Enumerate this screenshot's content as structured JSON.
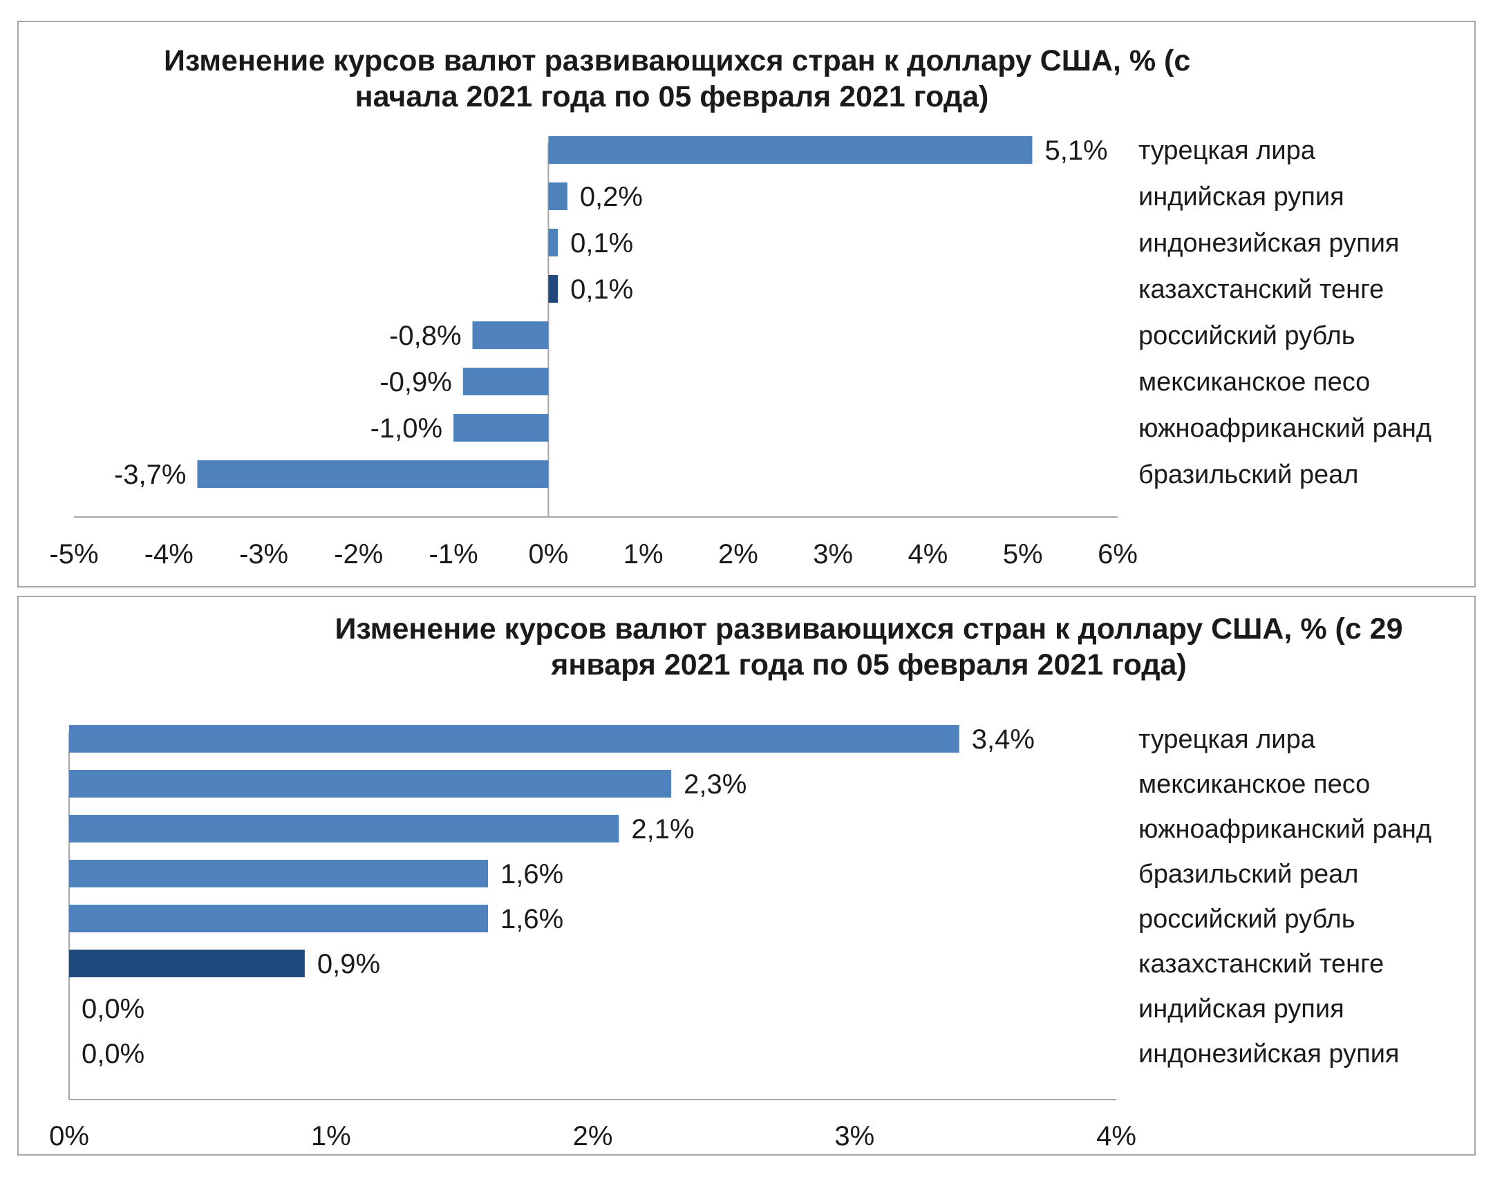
{
  "colors": {
    "bar": "#4f81bd",
    "bar_highlight": "#1f497d",
    "axis": "#a6a6a6",
    "panel_border": "#a6a6a6",
    "text": "#1a1a1a"
  },
  "chart_data": [
    {
      "type": "bar",
      "orientation": "horizontal",
      "title_line1": "Изменение курсов валют развивающихся стран к доллару США,  %  (с",
      "title_line2": "начала 2021 года по 05 февраля 2021 года)",
      "categories": [
        "турецкая лира",
        "индийская рупия",
        "индонезийская рупия",
        "казахстанский тенге",
        "российский рубль",
        "мексиканское песо",
        "южноафриканский ранд",
        "бразильский реал"
      ],
      "values": [
        5.1,
        0.2,
        0.1,
        0.1,
        -0.8,
        -0.9,
        -1.0,
        -3.7
      ],
      "value_labels": [
        "5,1%",
        "0,2%",
        "0,1%",
        "0,1%",
        "-0,8%",
        "-0,9%",
        "-1,0%",
        "-3,7%"
      ],
      "highlight": "казахстанский тенге",
      "xlim": [
        -5,
        6
      ],
      "xticks": [
        -5,
        -4,
        -3,
        -2,
        -1,
        0,
        1,
        2,
        3,
        4,
        5,
        6
      ],
      "xtick_labels": [
        "-5%",
        "-4%",
        "-3%",
        "-2%",
        "-1%",
        "0%",
        "1%",
        "2%",
        "3%",
        "4%",
        "5%",
        "6%"
      ],
      "grid": false,
      "legend": "none"
    },
    {
      "type": "bar",
      "orientation": "horizontal",
      "title_line1": "Изменение курсов валют развивающихся стран к доллару США,  %  (с 29",
      "title_line2": "января 2021 года по 05 февраля 2021 года)",
      "categories": [
        "турецкая лира",
        "мексиканское песо",
        "южноафриканский ранд",
        "бразильский реал",
        "российский рубль",
        "казахстанский тенге",
        "индийская рупия",
        "индонезийская рупия"
      ],
      "values": [
        3.4,
        2.3,
        2.1,
        1.6,
        1.6,
        0.9,
        0.0,
        0.0
      ],
      "value_labels": [
        "3,4%",
        "2,3%",
        "2,1%",
        "1,6%",
        "1,6%",
        "0,9%",
        "0,0%",
        "0,0%"
      ],
      "highlight": "казахстанский тенге",
      "xlim": [
        0,
        4
      ],
      "xticks": [
        0,
        1,
        2,
        3,
        4
      ],
      "xtick_labels": [
        "0%",
        "1%",
        "2%",
        "3%",
        "4%"
      ],
      "grid": false,
      "legend": "none"
    }
  ]
}
